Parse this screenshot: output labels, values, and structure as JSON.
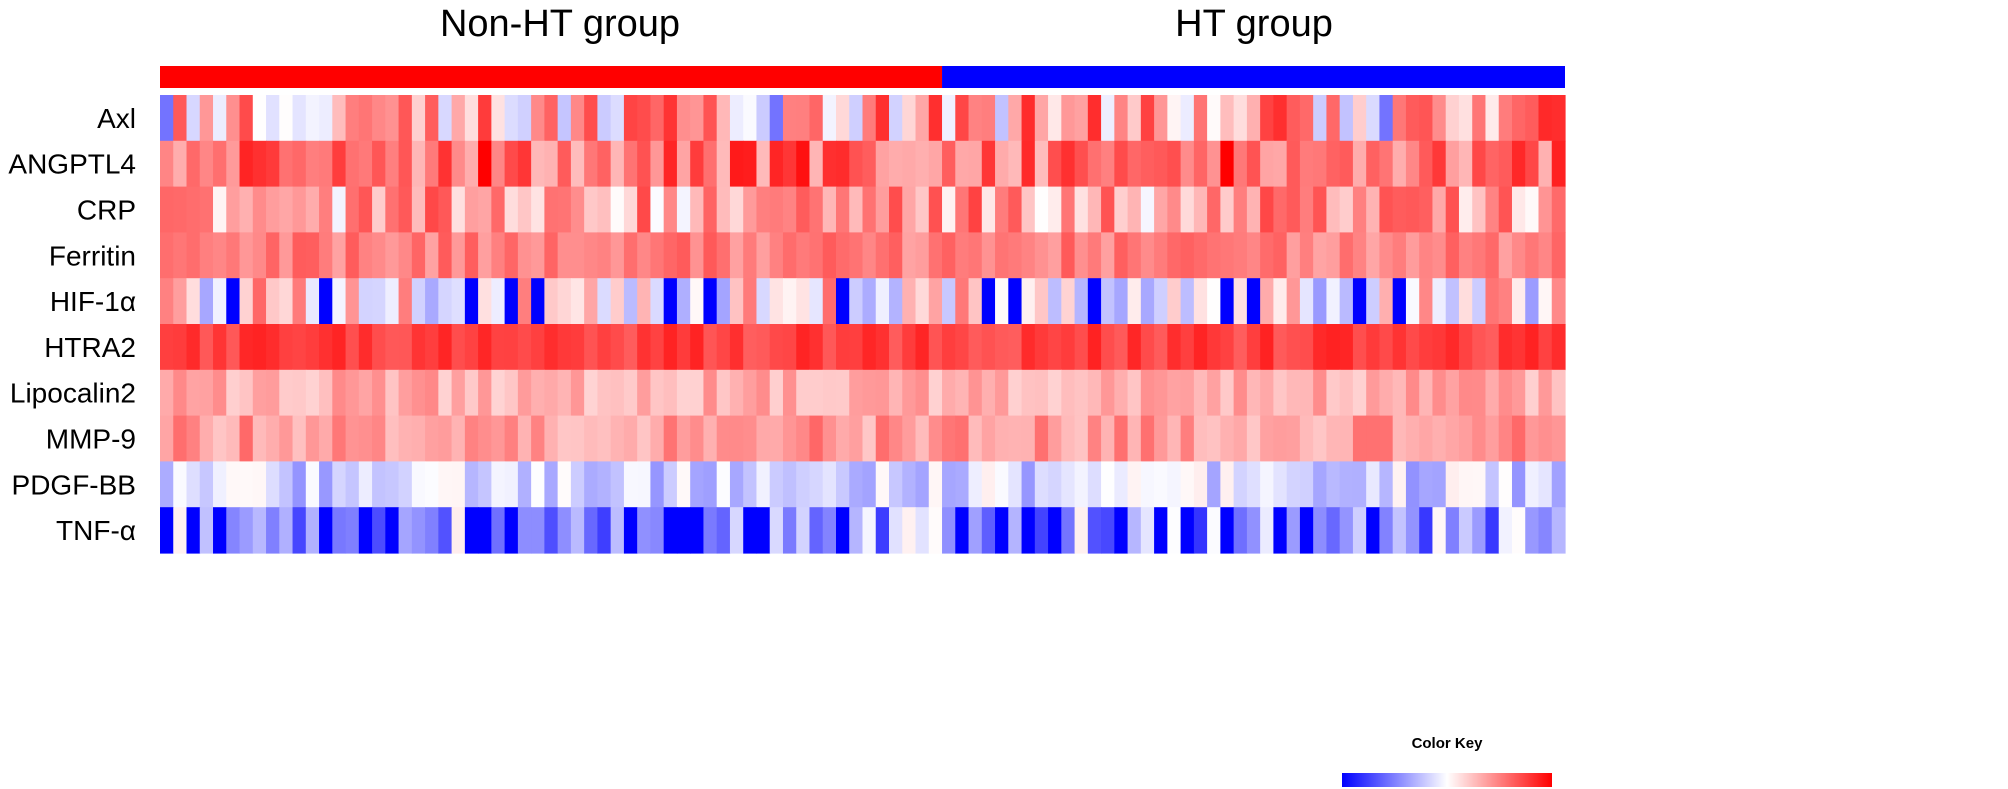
{
  "chart_data": {
    "type": "heatmap",
    "title": "",
    "groups": [
      {
        "name": "Non-HT group",
        "color": "#ff0000",
        "n": 59
      },
      {
        "name": "HT group",
        "color": "#0000ff",
        "n": 47
      }
    ],
    "rows": [
      "Axl",
      "ANGPTL4",
      "CRP",
      "Ferritin",
      "HIF-1α",
      "HTRA2",
      "Lipocalin2",
      "MMP-9",
      "PDGF-BB",
      "TNF-α"
    ],
    "n_columns": 106,
    "value_range": [
      -1,
      1
    ],
    "color_scale": {
      "low": "#0000ff",
      "mid": "#ffffff",
      "high": "#ff0000"
    },
    "row_baselines": [
      0.3,
      0.6,
      0.35,
      0.5,
      0.1,
      0.75,
      0.32,
      0.4,
      -0.18,
      -0.35
    ],
    "saturated_low_columns": {
      "HIF-1α": [
        5,
        12,
        23,
        26,
        28,
        38,
        41,
        51,
        62,
        64,
        70,
        80,
        82,
        90,
        93
      ],
      "TNF-α": [
        0,
        2,
        4,
        12,
        15,
        17,
        23,
        24,
        26,
        35,
        38,
        39,
        40,
        44,
        45,
        51,
        60,
        63,
        65,
        67,
        72,
        75,
        77,
        80,
        84,
        86,
        91
      ]
    },
    "notable_columns": {
      "Axl_low": [
        0,
        46,
        92
      ],
      "ANGPTL4_high": [
        24,
        80
      ]
    },
    "legend": {
      "title": "Color Key",
      "position": "bottom-right"
    }
  }
}
